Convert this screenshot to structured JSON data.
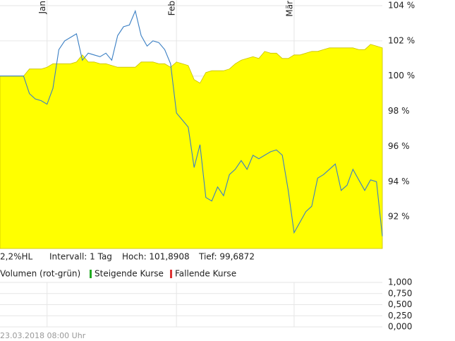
{
  "chart_data": [
    {
      "type": "line",
      "categories": [
        null,
        null,
        null,
        null,
        null,
        null,
        null,
        null,
        "Jan",
        null,
        null,
        null,
        null,
        null,
        null,
        null,
        null,
        null,
        null,
        null,
        null,
        null,
        null,
        null,
        null,
        null,
        null,
        null,
        null,
        null,
        "Feb",
        null,
        null,
        null,
        null,
        null,
        null,
        null,
        null,
        null,
        null,
        null,
        null,
        null,
        null,
        null,
        null,
        null,
        null,
        null,
        "Mär",
        null,
        null,
        null,
        null,
        null,
        null,
        null,
        null,
        null,
        null,
        null,
        null,
        null,
        null,
        null
      ],
      "series": [
        {
          "color": "#ffff00",
          "fill": true,
          "values": [
            100.0,
            100.0,
            100.0,
            100.0,
            100.0,
            100.4,
            100.4,
            100.4,
            100.5,
            100.7,
            100.7,
            100.7,
            100.7,
            100.8,
            101.2,
            100.8,
            100.8,
            100.7,
            100.7,
            100.6,
            100.5,
            100.5,
            100.5,
            100.5,
            100.8,
            100.8,
            100.8,
            100.7,
            100.7,
            100.5,
            100.8,
            100.7,
            100.6,
            99.8,
            99.6,
            100.2,
            100.3,
            100.3,
            100.3,
            100.4,
            100.7,
            100.9,
            101.0,
            101.1,
            101.0,
            101.4,
            101.3,
            101.3,
            101.0,
            101.0,
            101.2,
            101.2,
            101.3,
            101.4,
            101.4,
            101.5,
            101.6,
            101.6,
            101.6,
            101.6,
            101.6,
            101.5,
            101.5,
            101.8,
            101.7,
            101.6
          ]
        },
        {
          "color": "#3a7fc4",
          "fill": false,
          "values": [
            100.0,
            100.0,
            100.0,
            100.0,
            100.0,
            99.0,
            98.7,
            98.6,
            98.4,
            99.3,
            101.5,
            102.0,
            102.2,
            102.4,
            100.9,
            101.3,
            101.2,
            101.1,
            101.3,
            100.9,
            102.3,
            102.8,
            102.9,
            103.7,
            102.3,
            101.7,
            102.0,
            101.9,
            101.5,
            100.7,
            97.9,
            97.5,
            97.1,
            94.8,
            96.1,
            93.1,
            92.9,
            93.7,
            93.2,
            94.4,
            94.7,
            95.2,
            94.7,
            95.5,
            95.3,
            95.5,
            95.7,
            95.8,
            95.5,
            93.5,
            91.1,
            91.7,
            92.3,
            92.6,
            94.2,
            94.4,
            94.7,
            95.0,
            93.5,
            93.8,
            94.7,
            94.1,
            93.5,
            94.1,
            94.0,
            90.9
          ]
        }
      ],
      "ylim": [
        90.2,
        104
      ],
      "yticks": [
        {
          "value": 92,
          "label": "92 %"
        },
        {
          "value": 94,
          "label": "94 %"
        },
        {
          "value": 96,
          "label": "96 %"
        },
        {
          "value": 98,
          "label": "98 %"
        },
        {
          "value": 100,
          "label": "100 %"
        },
        {
          "value": 102,
          "label": "102 %"
        },
        {
          "value": 104,
          "label": "104 %"
        }
      ],
      "grid": true
    },
    {
      "type": "bar",
      "title": "Volumen (rot-grün)",
      "series": [
        {
          "name": "Steigende Kurse",
          "color": "#22aa22",
          "values": []
        },
        {
          "name": "Fallende Kurse",
          "color": "#dd3333",
          "values": []
        }
      ],
      "ylim": [
        0,
        1
      ],
      "yticks": [
        {
          "value": 1,
          "label": "1,000"
        },
        {
          "value": 0.75,
          "label": "0,750"
        },
        {
          "value": 0.5,
          "label": "0,500"
        },
        {
          "value": 0.25,
          "label": "0,250"
        },
        {
          "value": 0,
          "label": "0,000"
        }
      ],
      "grid": true
    }
  ],
  "info": {
    "range": "2,2%HL",
    "interval": "Intervall: 1 Tag",
    "high": "Hoch: 101,8908",
    "low": "Tief: 99,6872"
  },
  "footer": "23.03.2018 08:00 Uhr"
}
